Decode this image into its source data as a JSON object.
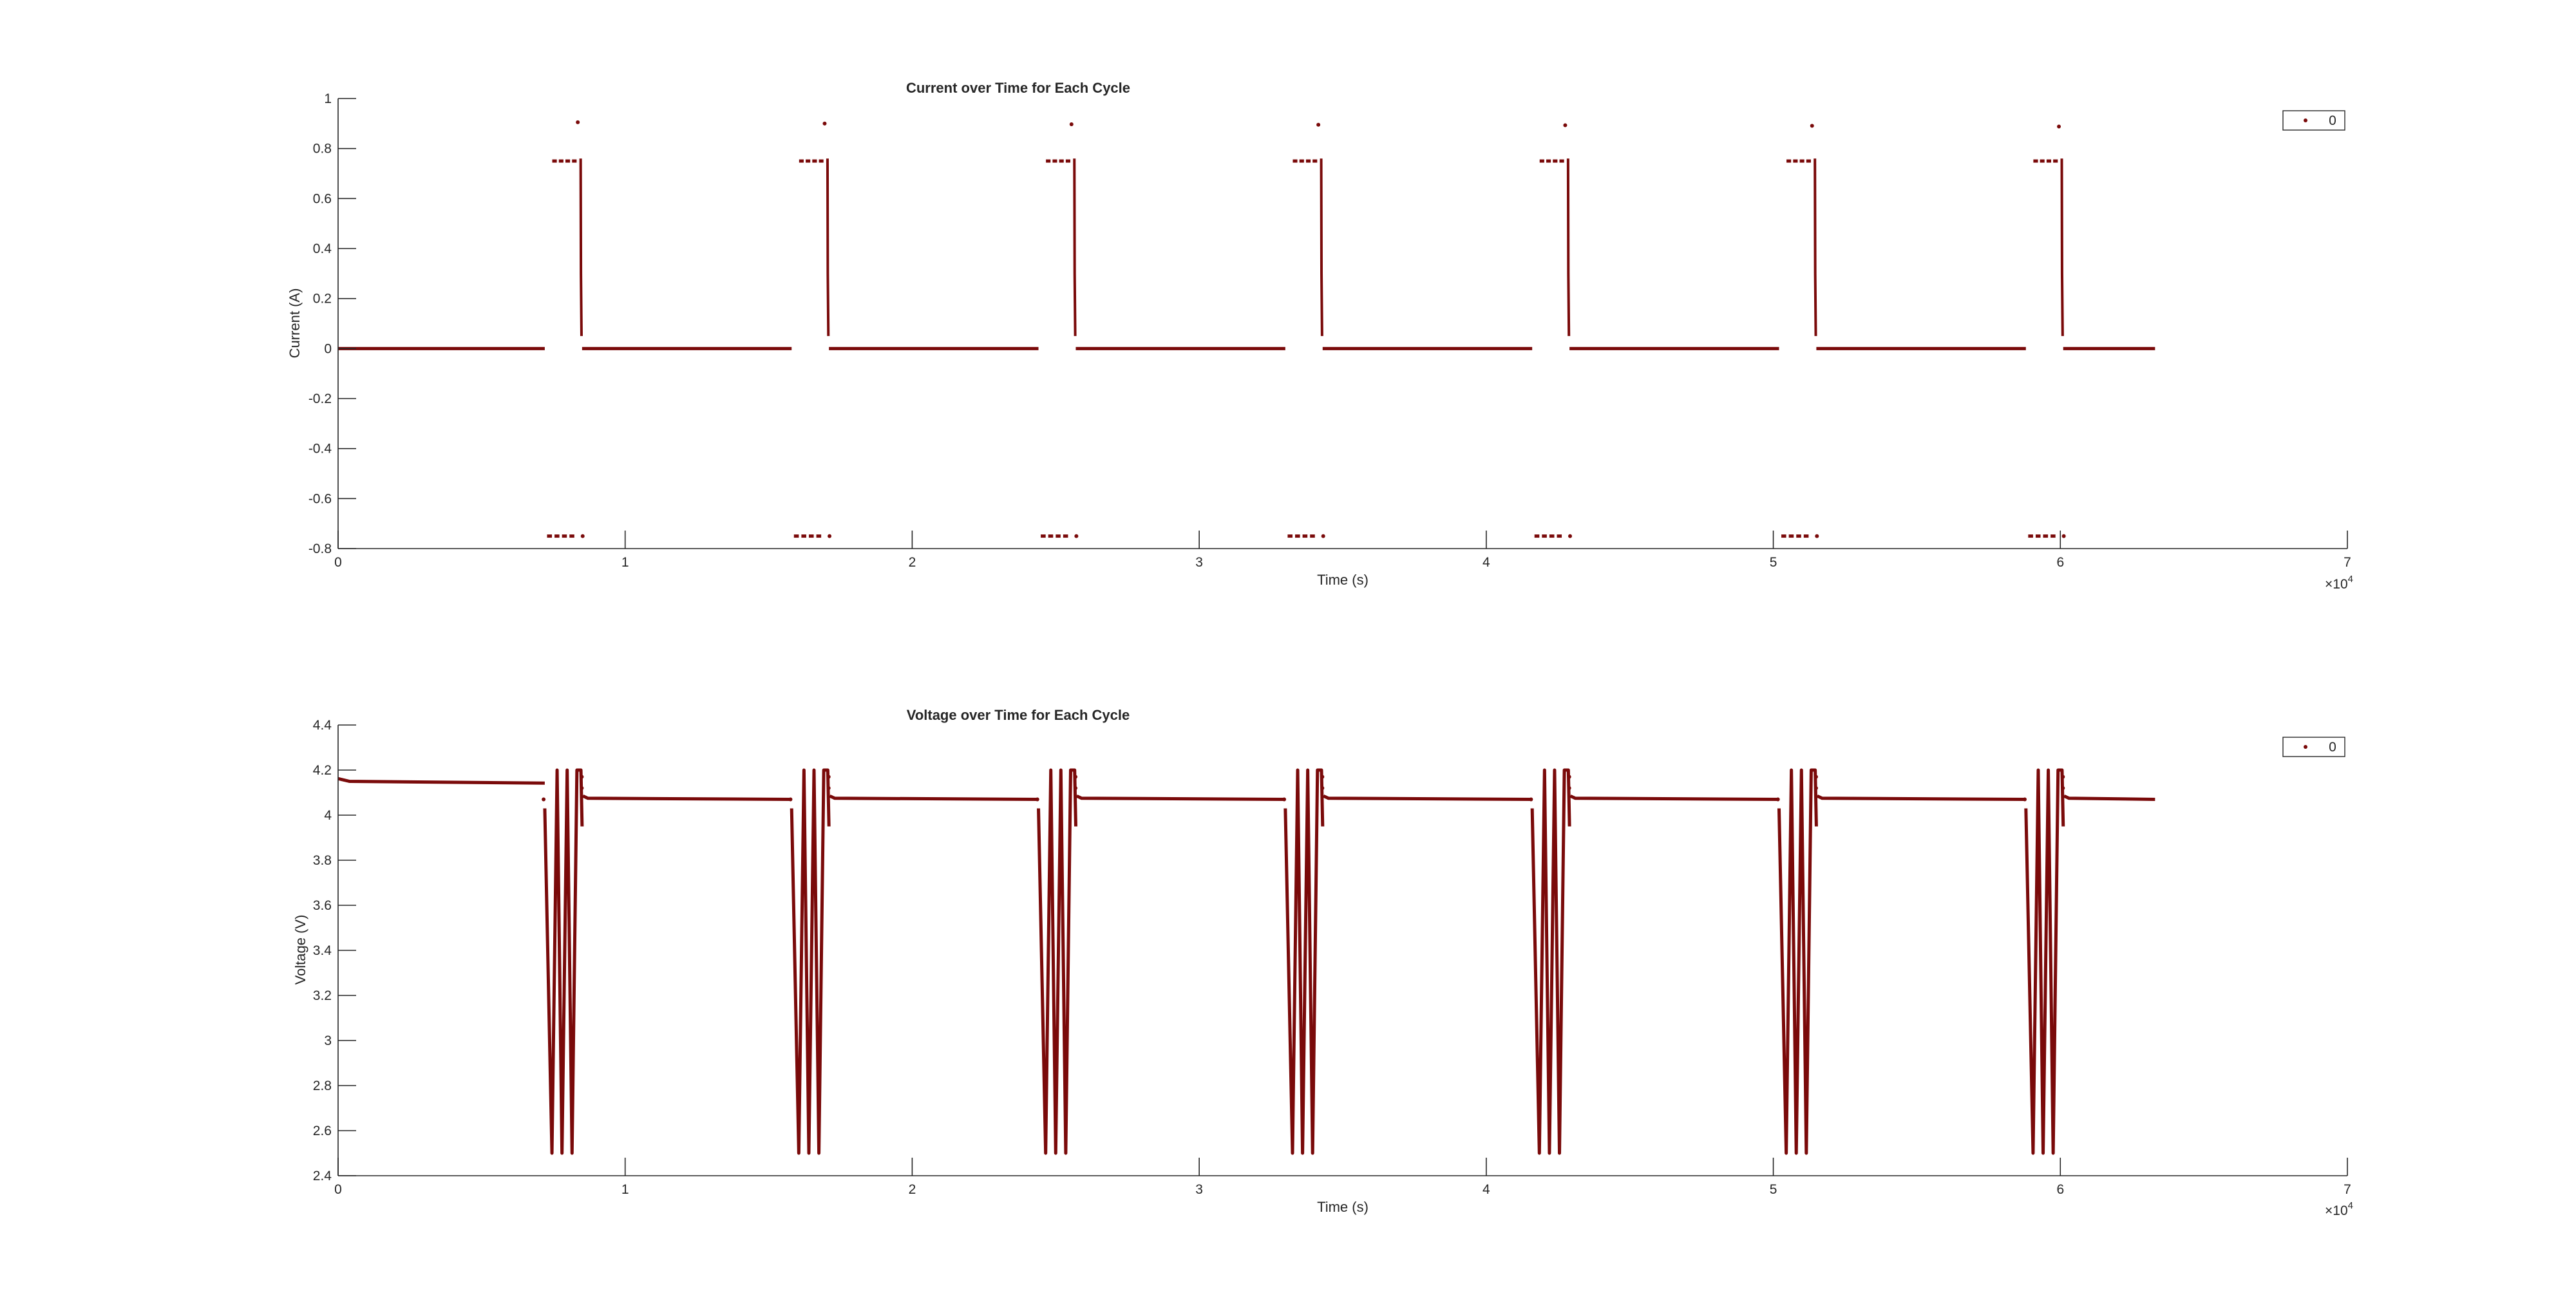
{
  "chart_data": [
    {
      "type": "scatter",
      "title": "Current over Time for Each Cycle",
      "xlabel": "Time (s)",
      "ylabel": "Current (A)",
      "x_multiplier_label": "×10",
      "x_multiplier_exp": "4",
      "xlim": [
        0,
        70000
      ],
      "ylim": [
        -0.8,
        1
      ],
      "xticks": [
        0,
        10000,
        20000,
        30000,
        40000,
        50000,
        60000,
        70000
      ],
      "xtick_labels": [
        "0",
        "1",
        "2",
        "3",
        "4",
        "5",
        "6",
        "7"
      ],
      "yticks": [
        -0.8,
        -0.6,
        -0.4,
        -0.2,
        0,
        0.2,
        0.4,
        0.6,
        0.8,
        1
      ],
      "ytick_labels": [
        "-0.8",
        "-0.6",
        "-0.4",
        "-0.2",
        "0",
        "0.2",
        "0.4",
        "0.6",
        "0.8",
        "1"
      ],
      "legend": {
        "entries": [
          "0"
        ],
        "position": "top-right"
      },
      "color": "#7a0a0a",
      "cycle_starts": [
        7200,
        15800,
        24400,
        33000,
        41600,
        50200,
        58800
      ],
      "rest_end": 63300,
      "rest_value": 0,
      "discharge_value": -0.75,
      "charge_value": 0.75,
      "peak_values": [
        0.905,
        0.9,
        0.897,
        0.895,
        0.893,
        0.891,
        0.888
      ]
    },
    {
      "type": "scatter",
      "title": "Voltage over Time for Each Cycle",
      "xlabel": "Time (s)",
      "ylabel": "Voltage (V)",
      "x_multiplier_label": "×10",
      "x_multiplier_exp": "4",
      "xlim": [
        0,
        70000
      ],
      "ylim": [
        2.4,
        4.4
      ],
      "xticks": [
        0,
        10000,
        20000,
        30000,
        40000,
        50000,
        60000,
        70000
      ],
      "xtick_labels": [
        "0",
        "1",
        "2",
        "3",
        "4",
        "5",
        "6",
        "7"
      ],
      "yticks": [
        2.4,
        2.6,
        2.8,
        3,
        3.2,
        3.4,
        3.6,
        3.8,
        4,
        4.2,
        4.4
      ],
      "ytick_labels": [
        "2.4",
        "2.6",
        "2.8",
        "3",
        "3.2",
        "3.4",
        "3.6",
        "3.8",
        "4",
        "4.2",
        "4.4"
      ],
      "legend": {
        "entries": [
          "0"
        ],
        "position": "top-right"
      },
      "color": "#7a0a0a",
      "cycle_starts": [
        7200,
        15800,
        24400,
        33000,
        41600,
        50200,
        58800
      ],
      "rest_end": 63300,
      "initial_voltage": 4.15,
      "rest_voltage": 4.07,
      "min_voltage": 2.5,
      "max_voltage": 4.2
    }
  ]
}
